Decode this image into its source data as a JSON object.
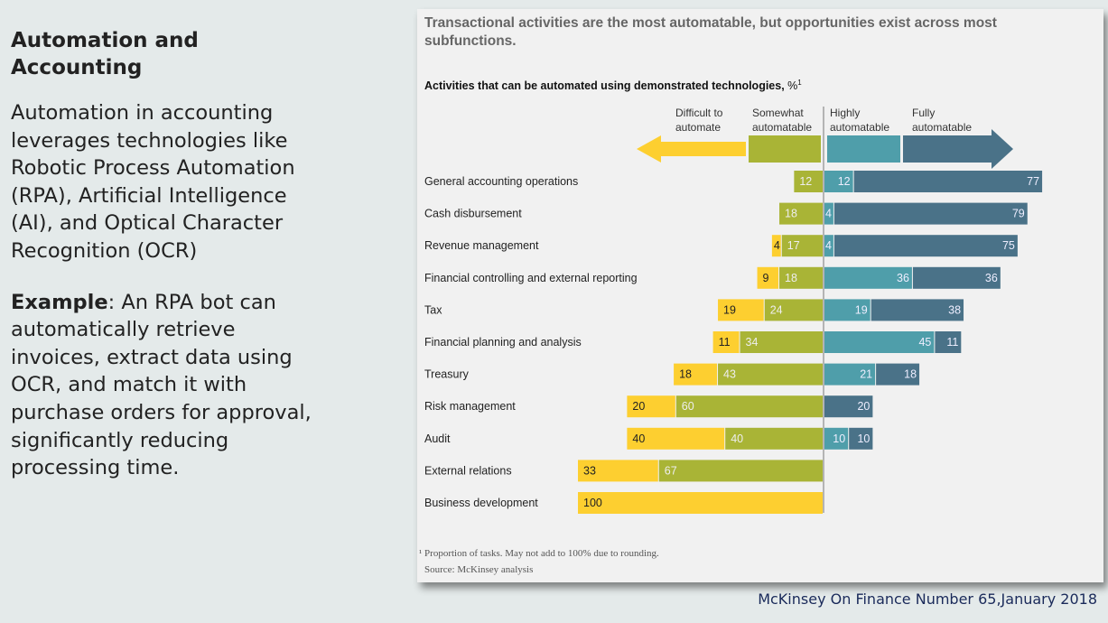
{
  "slide": {
    "heading": "Automation and Accounting",
    "body": "Automation in accounting leverages technologies like Robotic Process Automation (RPA), Artificial Intelligence (AI), and Optical Character Recognition (OCR)",
    "example_label": "Example",
    "example_text": ": An RPA bot can automatically retrieve invoices, extract data using OCR, and match it with purchase orders for approval, significantly reducing processing time.",
    "credit": "McKinsey On Finance Number 65,January 2018"
  },
  "chart_data": {
    "type": "bar",
    "orientation": "horizontal-diverging-stacked",
    "title": "Transactional activities are the most automatable, but opportunities exist across most subfunctions.",
    "subtitle": "Activities that can be automated using demonstrated technologies,",
    "subtitle_unit": "%",
    "subtitle_sup": "1",
    "footnote": "¹ Proportion of tasks. May not add to 100% due to rounding.",
    "source": "Source: McKinsey analysis",
    "categories": [
      "General accounting operations",
      "Cash disbursement",
      "Revenue management",
      "Financial controlling and external reporting",
      "Tax",
      "Financial planning and analysis",
      "Treasury",
      "Risk management",
      "Audit",
      "External relations",
      "Business development"
    ],
    "series": [
      {
        "name": "Difficult to automate",
        "side": "left",
        "color": "#fdcf30",
        "values": [
          0,
          0,
          4,
          9,
          19,
          11,
          18,
          20,
          40,
          33,
          100
        ]
      },
      {
        "name": "Somewhat automatable",
        "side": "left",
        "color": "#a9b436",
        "values": [
          12,
          18,
          17,
          18,
          24,
          34,
          43,
          60,
          40,
          67,
          0
        ]
      },
      {
        "name": "Highly automatable",
        "side": "right",
        "color": "#4f9eaa",
        "values": [
          12,
          4,
          4,
          36,
          19,
          45,
          21,
          0,
          10,
          0,
          0
        ]
      },
      {
        "name": "Fully automatable",
        "side": "right",
        "color": "#4a7288",
        "values": [
          77,
          79,
          75,
          36,
          38,
          11,
          18,
          20,
          10,
          0,
          0
        ]
      }
    ],
    "legend_placement": "top",
    "grid": false
  }
}
